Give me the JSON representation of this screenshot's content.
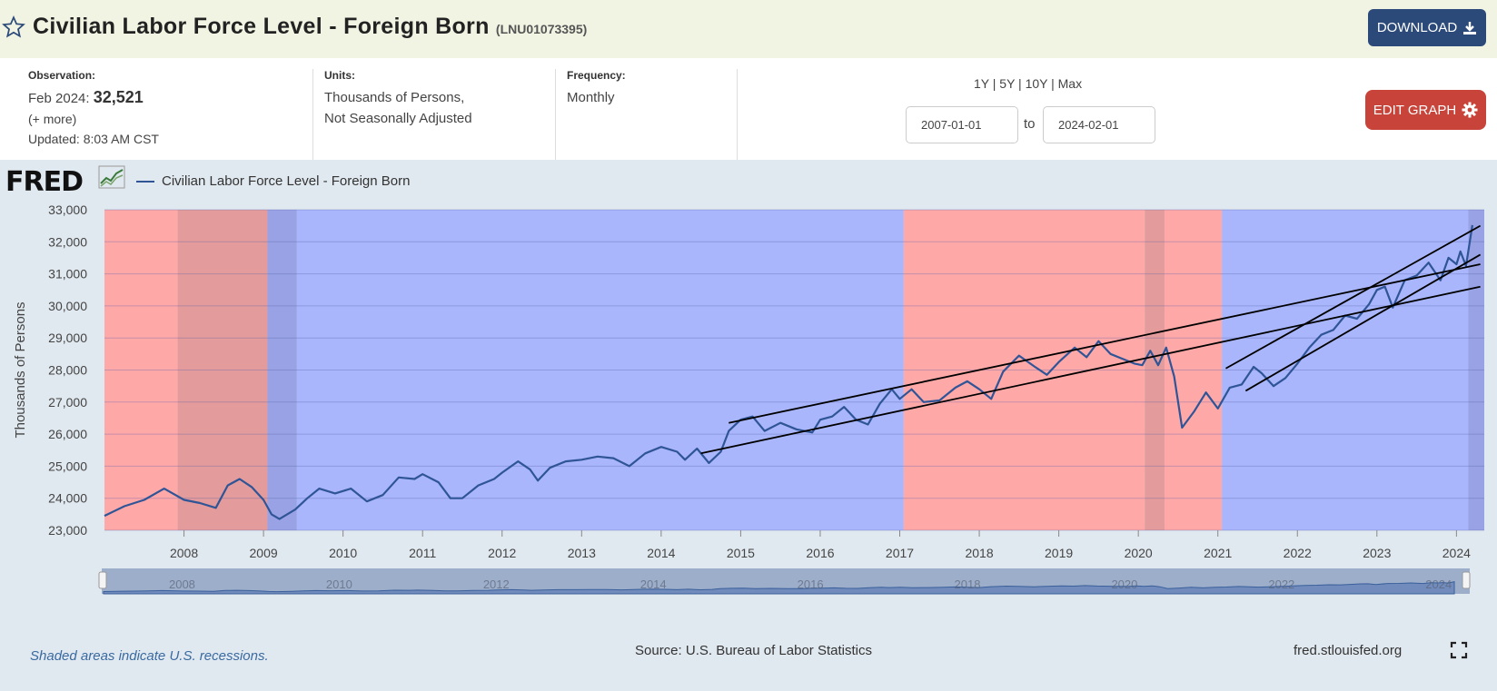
{
  "header": {
    "title": "Civilian Labor Force Level - Foreign Born",
    "series_id": "(LNU01073395)",
    "download_label": "DOWNLOAD"
  },
  "meta": {
    "observation_label": "Observation:",
    "observation_date": "Feb 2024:",
    "observation_value": "32,521",
    "more_label": "(+ more)",
    "updated": "Updated: 8:03 AM CST",
    "units_label": "Units:",
    "units_line1": "Thousands of Persons,",
    "units_line2": "Not Seasonally Adjusted",
    "frequency_label": "Frequency:",
    "frequency_value": "Monthly",
    "range_links": "1Y | 5Y | 10Y | Max",
    "start_date": "2007-01-01",
    "to_label": "to",
    "end_date": "2024-02-01",
    "edit_label": "EDIT GRAPH"
  },
  "footer": {
    "recession_note": "Shaded areas indicate U.S. recessions.",
    "source": "Source: U.S. Bureau of Labor Statistics",
    "site": "fred.stlouisfed.org"
  },
  "logo_text": "FRED",
  "chart_data": {
    "type": "line",
    "ylabel": "Thousands of Persons",
    "ylim": [
      23000,
      33000
    ],
    "yticks": [
      "23,000",
      "24,000",
      "25,000",
      "26,000",
      "27,000",
      "28,000",
      "29,000",
      "30,000",
      "31,000",
      "32,000",
      "33,000"
    ],
    "xticks": [
      "2008",
      "2009",
      "2010",
      "2011",
      "2012",
      "2013",
      "2014",
      "2015",
      "2016",
      "2017",
      "2018",
      "2019",
      "2020",
      "2021",
      "2022",
      "2023",
      "2024"
    ],
    "navigator_labels": [
      "2008",
      "2010",
      "2012",
      "2014",
      "2016",
      "2018",
      "2020",
      "2022",
      "2024"
    ],
    "series": [
      {
        "name": "Civilian Labor Force Level - Foreign Born",
        "color": "#2f5597",
        "points": [
          [
            2007.0,
            23450
          ],
          [
            2007.25,
            23750
          ],
          [
            2007.5,
            23950
          ],
          [
            2007.75,
            24300
          ],
          [
            2008.0,
            23950
          ],
          [
            2008.2,
            23850
          ],
          [
            2008.4,
            23700
          ],
          [
            2008.55,
            24400
          ],
          [
            2008.7,
            24600
          ],
          [
            2008.85,
            24350
          ],
          [
            2009.0,
            23950
          ],
          [
            2009.1,
            23500
          ],
          [
            2009.2,
            23350
          ],
          [
            2009.4,
            23650
          ],
          [
            2009.55,
            24000
          ],
          [
            2009.7,
            24300
          ],
          [
            2009.9,
            24150
          ],
          [
            2010.1,
            24300
          ],
          [
            2010.3,
            23900
          ],
          [
            2010.5,
            24100
          ],
          [
            2010.7,
            24650
          ],
          [
            2010.9,
            24600
          ],
          [
            2011.0,
            24750
          ],
          [
            2011.2,
            24500
          ],
          [
            2011.35,
            24000
          ],
          [
            2011.5,
            24000
          ],
          [
            2011.7,
            24400
          ],
          [
            2011.9,
            24600
          ],
          [
            2012.0,
            24800
          ],
          [
            2012.2,
            25150
          ],
          [
            2012.35,
            24900
          ],
          [
            2012.45,
            24550
          ],
          [
            2012.6,
            24950
          ],
          [
            2012.8,
            25150
          ],
          [
            2013.0,
            25200
          ],
          [
            2013.2,
            25300
          ],
          [
            2013.4,
            25250
          ],
          [
            2013.6,
            25000
          ],
          [
            2013.8,
            25400
          ],
          [
            2014.0,
            25600
          ],
          [
            2014.2,
            25450
          ],
          [
            2014.3,
            25200
          ],
          [
            2014.45,
            25550
          ],
          [
            2014.6,
            25100
          ],
          [
            2014.75,
            25450
          ],
          [
            2014.85,
            26100
          ],
          [
            2015.0,
            26450
          ],
          [
            2015.15,
            26550
          ],
          [
            2015.3,
            26100
          ],
          [
            2015.5,
            26350
          ],
          [
            2015.7,
            26150
          ],
          [
            2015.9,
            26050
          ],
          [
            2016.0,
            26450
          ],
          [
            2016.15,
            26550
          ],
          [
            2016.3,
            26850
          ],
          [
            2016.45,
            26450
          ],
          [
            2016.6,
            26300
          ],
          [
            2016.75,
            26950
          ],
          [
            2016.9,
            27400
          ],
          [
            2017.0,
            27100
          ],
          [
            2017.15,
            27400
          ],
          [
            2017.3,
            27000
          ],
          [
            2017.5,
            27050
          ],
          [
            2017.7,
            27450
          ],
          [
            2017.85,
            27650
          ],
          [
            2018.0,
            27400
          ],
          [
            2018.15,
            27100
          ],
          [
            2018.3,
            27950
          ],
          [
            2018.5,
            28450
          ],
          [
            2018.7,
            28100
          ],
          [
            2018.85,
            27850
          ],
          [
            2019.0,
            28250
          ],
          [
            2019.2,
            28700
          ],
          [
            2019.35,
            28400
          ],
          [
            2019.5,
            28900
          ],
          [
            2019.65,
            28500
          ],
          [
            2019.8,
            28350
          ],
          [
            2019.95,
            28200
          ],
          [
            2020.05,
            28150
          ],
          [
            2020.15,
            28600
          ],
          [
            2020.25,
            28150
          ],
          [
            2020.35,
            28700
          ],
          [
            2020.45,
            27800
          ],
          [
            2020.55,
            26200
          ],
          [
            2020.7,
            26700
          ],
          [
            2020.85,
            27300
          ],
          [
            2021.0,
            26800
          ],
          [
            2021.15,
            27450
          ],
          [
            2021.3,
            27550
          ],
          [
            2021.45,
            28100
          ],
          [
            2021.55,
            27900
          ],
          [
            2021.7,
            27500
          ],
          [
            2021.85,
            27750
          ],
          [
            2022.0,
            28200
          ],
          [
            2022.15,
            28700
          ],
          [
            2022.3,
            29100
          ],
          [
            2022.45,
            29250
          ],
          [
            2022.6,
            29700
          ],
          [
            2022.75,
            29600
          ],
          [
            2022.9,
            30050
          ],
          [
            2023.0,
            30500
          ],
          [
            2023.1,
            30600
          ],
          [
            2023.2,
            29950
          ],
          [
            2023.35,
            30800
          ],
          [
            2023.5,
            30950
          ],
          [
            2023.65,
            31350
          ],
          [
            2023.8,
            30800
          ],
          [
            2023.9,
            31500
          ],
          [
            2024.0,
            31300
          ],
          [
            2024.05,
            31700
          ],
          [
            2024.12,
            31250
          ],
          [
            2024.2,
            32521
          ]
        ]
      }
    ],
    "shaded_bands": [
      {
        "from": 2007.0,
        "to": 2007.92,
        "color": "#ffa8a8"
      },
      {
        "from": 2007.92,
        "to": 2009.05,
        "color": "#e49b9b"
      },
      {
        "from": 2009.05,
        "to": 2009.42,
        "color": "#98a2e4"
      },
      {
        "from": 2009.42,
        "to": 2017.05,
        "color": "#a9b6fc"
      },
      {
        "from": 2017.05,
        "to": 2020.08,
        "color": "#ffa8a8"
      },
      {
        "from": 2020.08,
        "to": 2020.33,
        "color": "#e49b9b"
      },
      {
        "from": 2020.33,
        "to": 2021.05,
        "color": "#ffa8a8"
      },
      {
        "from": 2021.05,
        "to": 2024.15,
        "color": "#a9b6fc"
      },
      {
        "from": 2024.15,
        "to": 2024.35,
        "color": "#98a2e4"
      }
    ],
    "trend_lines": [
      {
        "x1": 2014.85,
        "y1": 26350,
        "x2": 2024.3,
        "y2": 31300
      },
      {
        "x1": 2014.5,
        "y1": 25400,
        "x2": 2024.3,
        "y2": 30600
      },
      {
        "x1": 2021.1,
        "y1": 28050,
        "x2": 2024.3,
        "y2": 32500
      },
      {
        "x1": 2021.35,
        "y1": 27350,
        "x2": 2024.3,
        "y2": 31600
      }
    ],
    "grid": true,
    "legend": "top-left"
  }
}
